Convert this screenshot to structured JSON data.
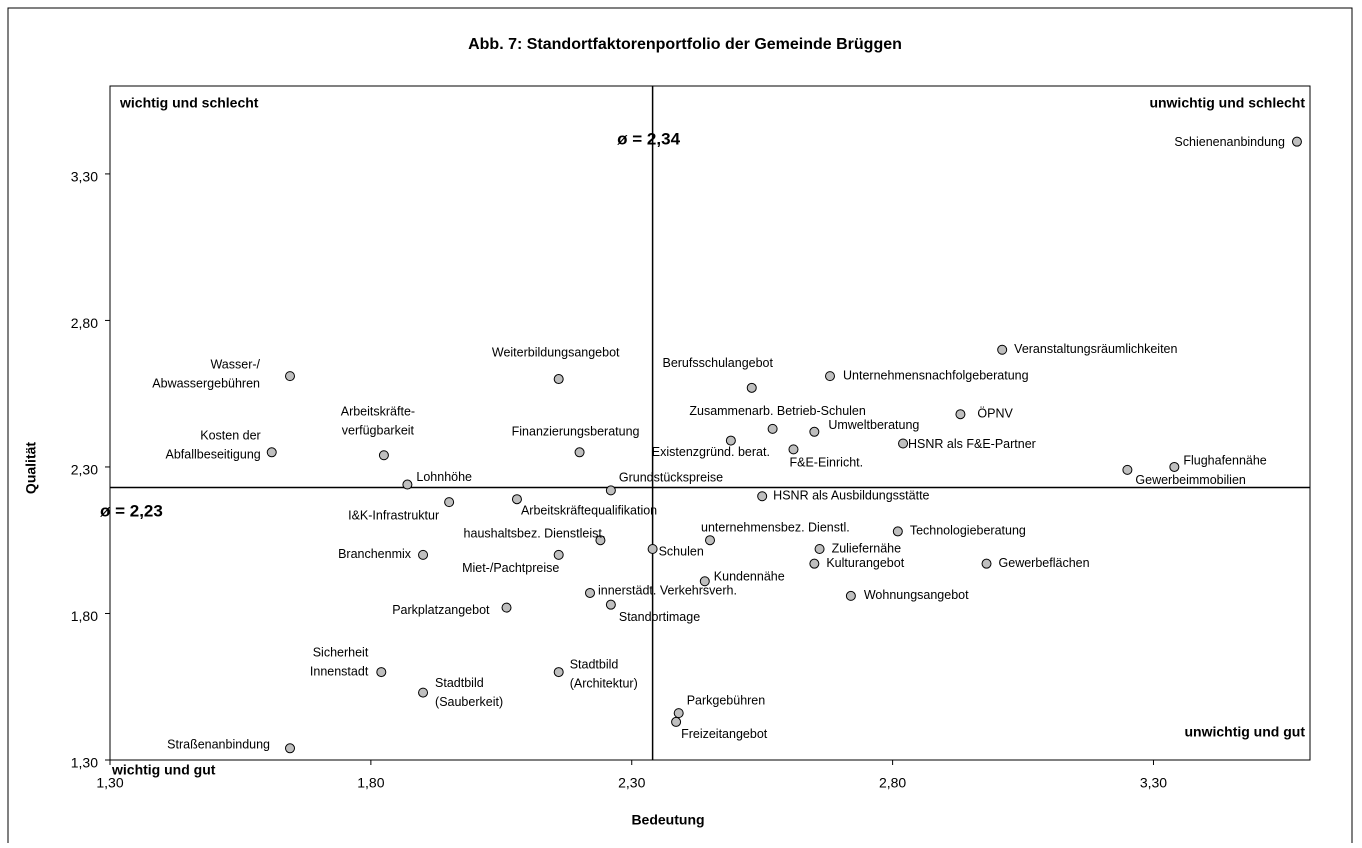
{
  "chart_data": {
    "type": "scatter",
    "title": "Abb. 7: Standortfaktorenportfolio der Gemeinde Brüggen",
    "xlabel": "Bedeutung",
    "ylabel": "Qualität",
    "xlim": [
      1.3,
      3.6
    ],
    "ylim": [
      1.3,
      3.6
    ],
    "xticks": [
      {
        "value": 1.3,
        "label": "1,30"
      },
      {
        "value": 1.8,
        "label": "1,80"
      },
      {
        "value": 2.3,
        "label": "2,30"
      },
      {
        "value": 2.8,
        "label": "2,80"
      },
      {
        "value": 3.3,
        "label": "3,30"
      }
    ],
    "yticks": [
      {
        "value": 1.3,
        "label": "1,30"
      },
      {
        "value": 1.8,
        "label": "1,80"
      },
      {
        "value": 2.3,
        "label": "2,30"
      },
      {
        "value": 2.8,
        "label": "2,80"
      },
      {
        "value": 3.3,
        "label": "3,30"
      }
    ],
    "mean_x": {
      "value": 2.34,
      "label": "ø = 2,34"
    },
    "mean_y": {
      "value": 2.23,
      "label": "ø = 2,23"
    },
    "quadrants": [
      "wichtig und schlecht",
      "unwichtig und schlecht",
      "unwichtig und gut",
      "wichtig und gut"
    ],
    "color": "#bfbfbf",
    "labels": [
      "Schienenanbindung",
      "Veranstaltungsräumlichkeiten",
      "Unternehmensnachfolgeberatung",
      "Berufsschulangebot",
      "ÖPNV",
      "Zusammenarb. Betrieb-Schulen",
      "Umweltberatung",
      "Existenzgründ. berat.",
      "F&E-Einricht.",
      "HSNR als F&E-Partner",
      "Flughafennähe",
      "Gewerbeimmobilien",
      [
        "Wasser-/",
        "Abwassergebühren"
      ],
      "Weiterbildungsangebot",
      [
        "Kosten der",
        "Abfallbeseitigung"
      ],
      [
        "Arbeitskräfte-",
        "verfügbarkeit"
      ],
      "Finanzierungsberatung",
      "Lohnhöhe",
      "Grundstückspreise",
      "I&K-Infrastruktur",
      "Arbeitskräftequalifikation",
      "HSNR als Ausbildungsstätte",
      "Technologieberatung",
      "unternehmensbez. Dienstl.",
      "haushaltsbez. Dienstleist.",
      "Schulen",
      "Zuliefernähe",
      "Branchenmix",
      "Miet-/Pachtpreise",
      "Kulturangebot",
      "Gewerbeflächen",
      "Kundennähe",
      "innerstädt. Verkehrsverh.",
      "Wohnungsangebot",
      "Parkplatzangebot",
      "Standortimage",
      [
        "Sicherheit",
        "Innenstadt"
      ],
      [
        "Stadtbild",
        "(Architektur)"
      ],
      [
        "Stadtbild",
        "(Sauberkeit)"
      ],
      "Parkgebühren",
      "Freizeitangebot",
      "Straßenanbindung"
    ],
    "x": [
      3.575,
      3.01,
      2.68,
      2.53,
      2.93,
      2.57,
      2.65,
      2.49,
      2.61,
      2.82,
      3.34,
      3.25,
      1.645,
      2.16,
      1.61,
      1.825,
      2.2,
      1.87,
      2.26,
      1.95,
      2.08,
      2.55,
      2.81,
      2.45,
      2.24,
      2.34,
      2.66,
      1.9,
      2.16,
      2.65,
      2.98,
      2.44,
      2.22,
      2.72,
      2.06,
      2.26,
      1.82,
      2.16,
      1.9,
      2.39,
      2.385,
      1.645
    ],
    "values": [
      3.41,
      2.7,
      2.61,
      2.57,
      2.48,
      2.43,
      2.42,
      2.39,
      2.36,
      2.38,
      2.3,
      2.29,
      2.61,
      2.6,
      2.35,
      2.34,
      2.35,
      2.24,
      2.22,
      2.18,
      2.19,
      2.2,
      2.08,
      2.05,
      2.05,
      2.02,
      2.02,
      2.0,
      2.0,
      1.97,
      1.97,
      1.91,
      1.87,
      1.86,
      1.82,
      1.83,
      1.6,
      1.6,
      1.53,
      1.46,
      1.43,
      1.34
    ]
  }
}
